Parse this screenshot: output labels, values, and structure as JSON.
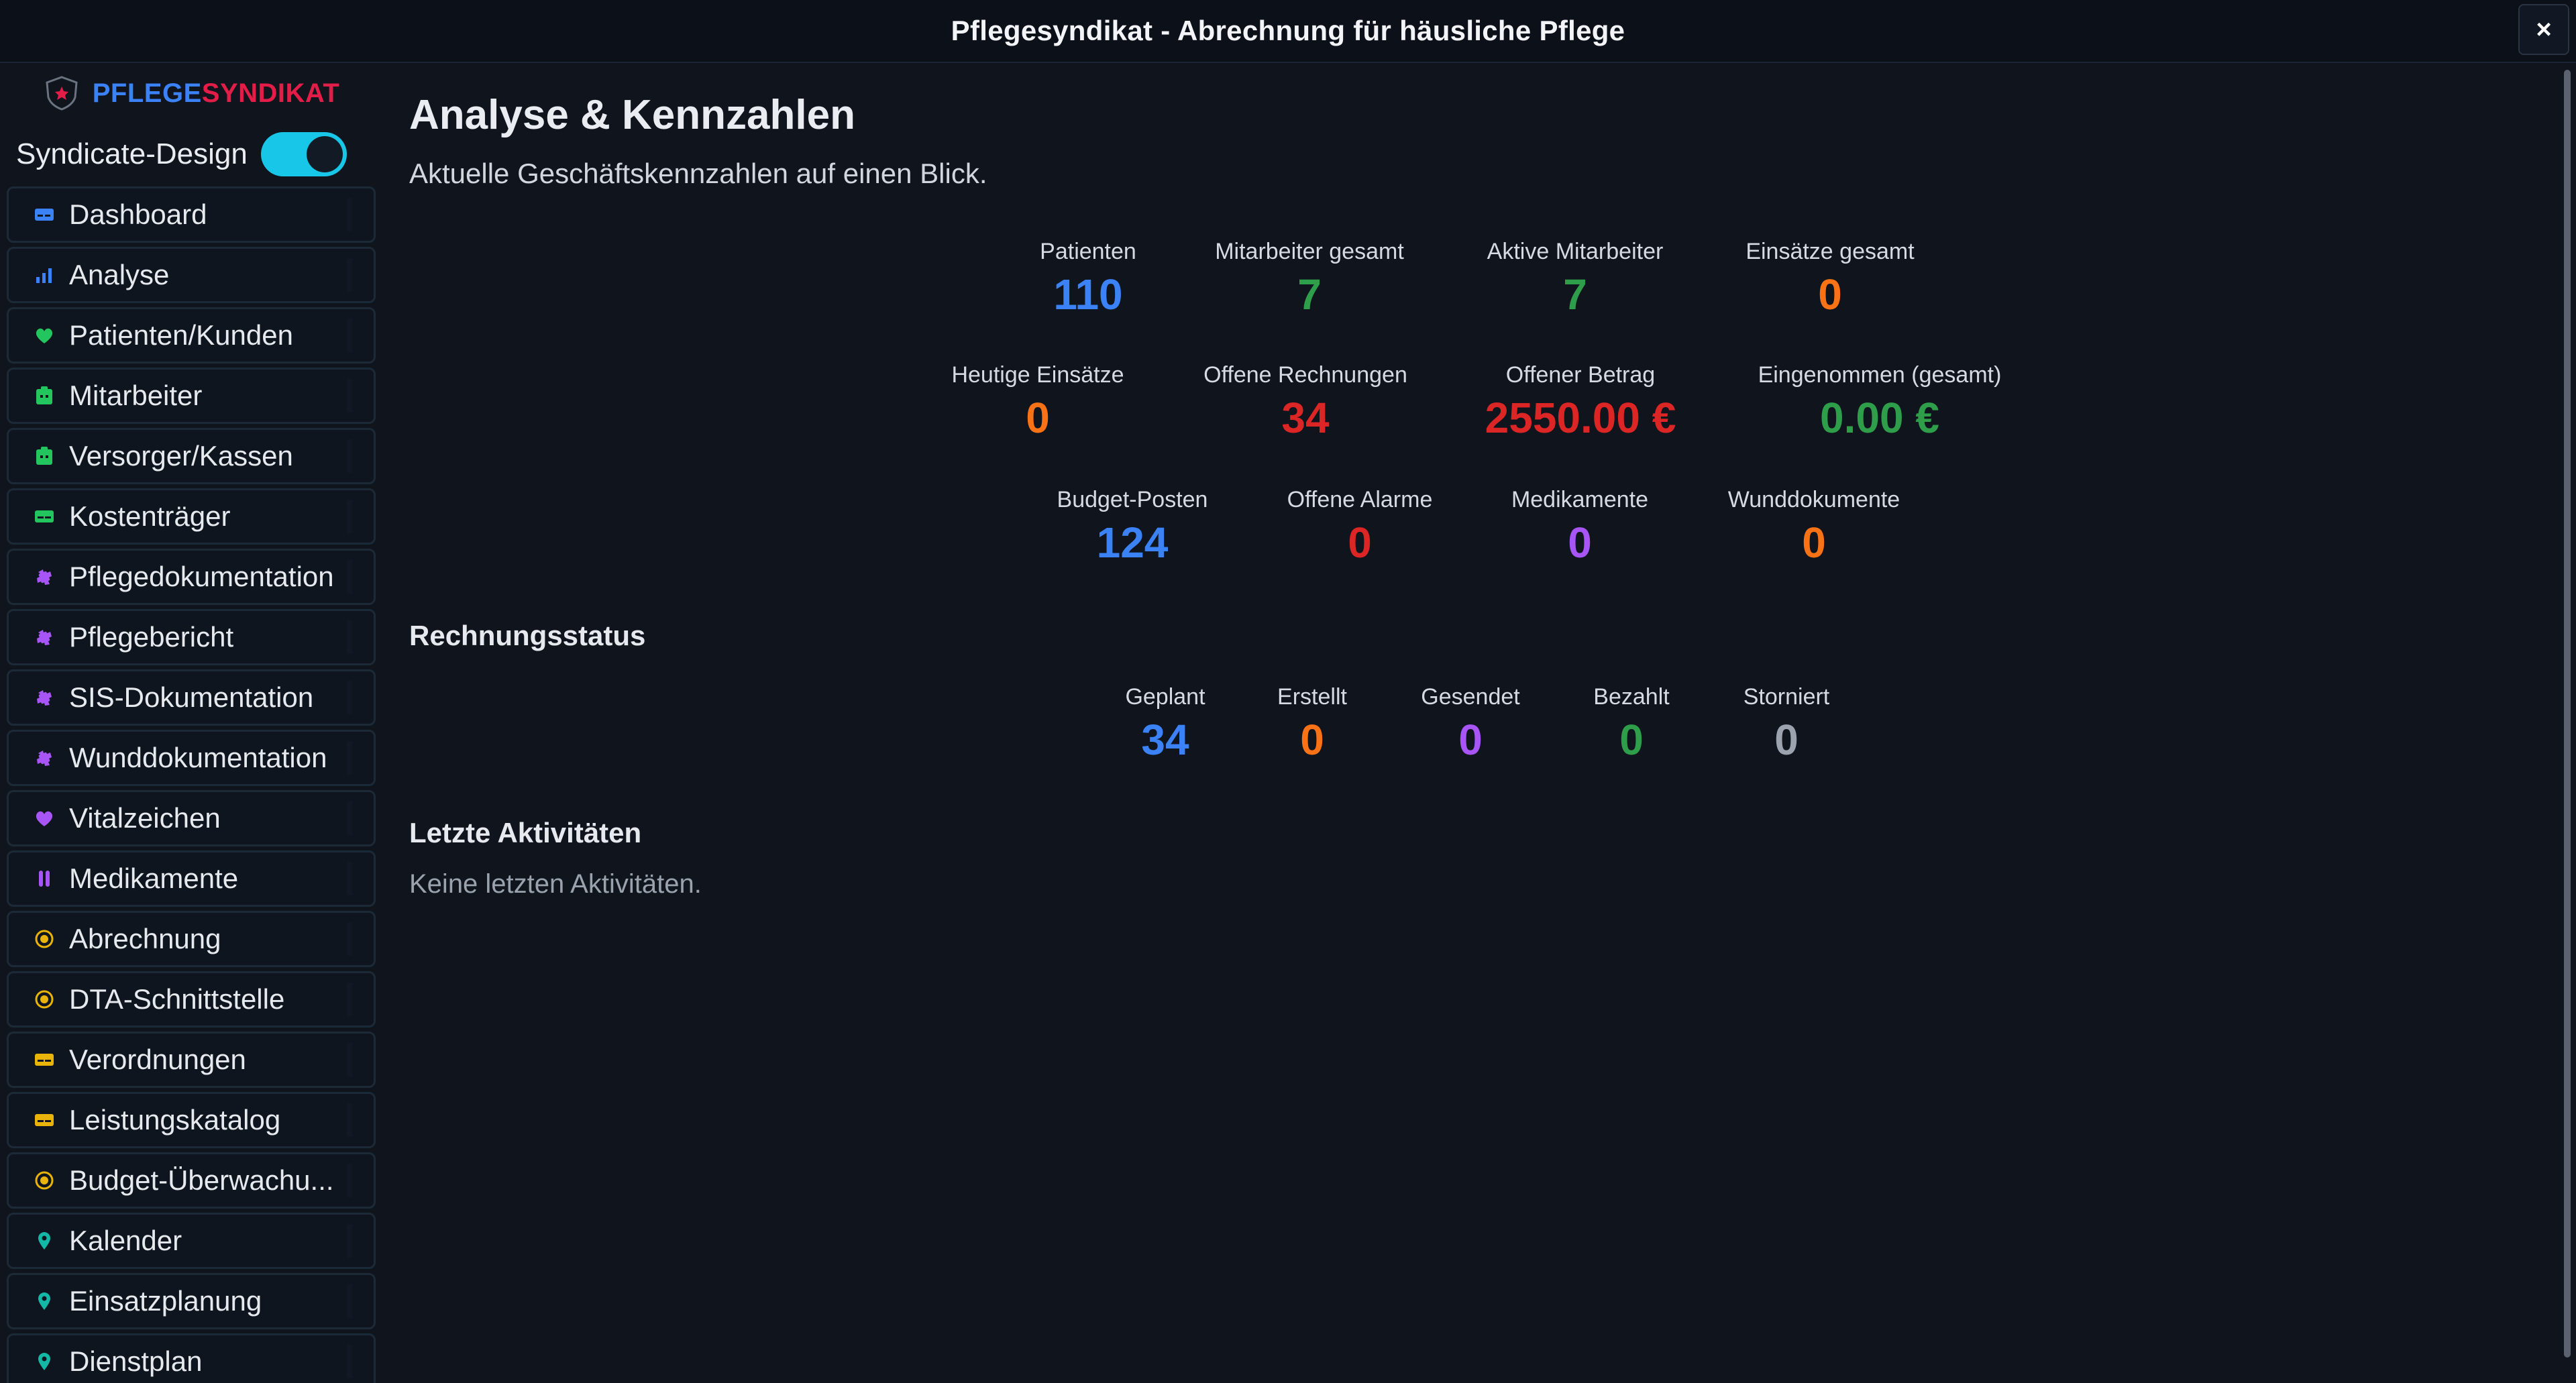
{
  "window": {
    "title": "Pflegesyndikat - Abrechnung für häusliche Pflege",
    "close_label": "×"
  },
  "brand": {
    "part1": "PFLEGE",
    "part2": "SYNDIKAT"
  },
  "toggle": {
    "label": "Syndicate-Design",
    "state": "on"
  },
  "sidebar": {
    "items": [
      {
        "label": "Dashboard",
        "icon": "id-card-icon",
        "color": "#3b82f6"
      },
      {
        "label": "Analyse",
        "icon": "bar-chart-icon",
        "color": "#3b82f6"
      },
      {
        "label": "Patienten/Kunden",
        "icon": "heart-icon",
        "color": "#22c55e"
      },
      {
        "label": "Mitarbeiter",
        "icon": "badge-icon",
        "color": "#22c55e"
      },
      {
        "label": "Versorger/Kassen",
        "icon": "badge-icon",
        "color": "#22c55e"
      },
      {
        "label": "Kostenträger",
        "icon": "card-icon",
        "color": "#22c55e"
      },
      {
        "label": "Pflegedokumentation",
        "icon": "puzzle-icon",
        "color": "#a855f7"
      },
      {
        "label": "Pflegebericht",
        "icon": "puzzle-icon",
        "color": "#a855f7"
      },
      {
        "label": "SIS-Dokumentation",
        "icon": "puzzle-icon",
        "color": "#a855f7"
      },
      {
        "label": "Wunddokumentation",
        "icon": "puzzle-icon",
        "color": "#a855f7"
      },
      {
        "label": "Vitalzeichen",
        "icon": "heart-icon",
        "color": "#a855f7"
      },
      {
        "label": "Medikamente",
        "icon": "pill-icon",
        "color": "#a855f7"
      },
      {
        "label": "Abrechnung",
        "icon": "coin-icon",
        "color": "#eab308"
      },
      {
        "label": "DTA-Schnittstelle",
        "icon": "coin-icon",
        "color": "#eab308"
      },
      {
        "label": "Verordnungen",
        "icon": "card-icon",
        "color": "#eab308"
      },
      {
        "label": "Leistungskatalog",
        "icon": "card-icon",
        "color": "#eab308"
      },
      {
        "label": "Budget-Überwachu...",
        "icon": "coin-icon",
        "color": "#eab308"
      },
      {
        "label": "Kalender",
        "icon": "pin-icon",
        "color": "#14b8a6"
      },
      {
        "label": "Einsatzplanung",
        "icon": "pin-icon",
        "color": "#14b8a6"
      },
      {
        "label": "Dienstplan",
        "icon": "pin-icon",
        "color": "#14b8a6"
      }
    ]
  },
  "main": {
    "title": "Analyse & Kennzahlen",
    "subtitle": "Aktuelle Geschäftskennzahlen auf einen Blick.",
    "kpi_rows": [
      [
        {
          "label": "Patienten",
          "value": "110",
          "color": "#3b82f6"
        },
        {
          "label": "Mitarbeiter gesamt",
          "value": "7",
          "color": "#2e9e4a"
        },
        {
          "label": "Aktive Mitarbeiter",
          "value": "7",
          "color": "#2e9e4a"
        },
        {
          "label": "Einsätze gesamt",
          "value": "0",
          "color": "#f97316"
        }
      ],
      [
        {
          "label": "Heutige Einsätze",
          "value": "0",
          "color": "#f97316"
        },
        {
          "label": "Offene Rechnungen",
          "value": "34",
          "color": "#dc2626"
        },
        {
          "label": "Offener Betrag",
          "value": "2550.00 €",
          "color": "#dc2626"
        },
        {
          "label": "Eingenommen (gesamt)",
          "value": "0.00 €",
          "color": "#2e9e4a"
        }
      ],
      [
        {
          "label": "Budget-Posten",
          "value": "124",
          "color": "#3b82f6"
        },
        {
          "label": "Offene Alarme",
          "value": "0",
          "color": "#dc2626"
        },
        {
          "label": "Medikamente",
          "value": "0",
          "color": "#a855f7"
        },
        {
          "label": "Wunddokumente",
          "value": "0",
          "color": "#f97316"
        }
      ]
    ],
    "invoice_status": {
      "title": "Rechnungsstatus",
      "items": [
        {
          "label": "Geplant",
          "value": "34",
          "color": "#3b82f6"
        },
        {
          "label": "Erstellt",
          "value": "0",
          "color": "#f97316"
        },
        {
          "label": "Gesendet",
          "value": "0",
          "color": "#a855f7"
        },
        {
          "label": "Bezahlt",
          "value": "0",
          "color": "#2e9e4a"
        },
        {
          "label": "Storniert",
          "value": "0",
          "color": "#9ca3af"
        }
      ]
    },
    "recent": {
      "title": "Letzte Aktivitäten",
      "empty_text": "Keine letzten Aktivitäten."
    }
  }
}
